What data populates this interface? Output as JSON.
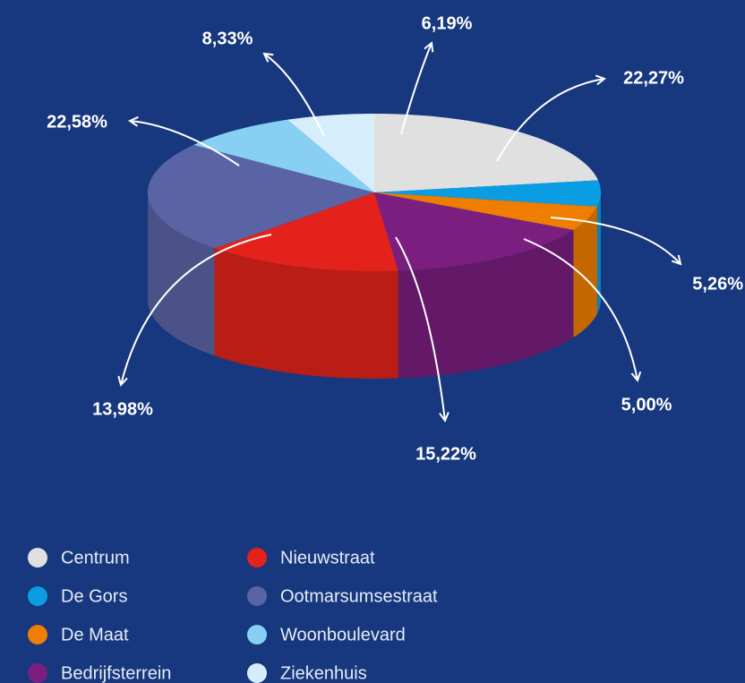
{
  "chart_data": {
    "type": "pie3d",
    "categories": [
      "Centrum",
      "De Gors",
      "De Maat",
      "Bedrijfsterrein",
      "Nieuwstraat",
      "Ootmarsumsestraat",
      "Woonboulevard",
      "Ziekenhuis"
    ],
    "values": [
      22.27,
      5.26,
      5.0,
      15.22,
      13.98,
      22.58,
      8.33,
      6.19
    ],
    "value_labels": [
      "22,27%",
      "5,26%",
      "5,00%",
      "15,22%",
      "13,98%",
      "22,58%",
      "8,33%",
      "6,19%"
    ],
    "colors": [
      "#e0e0e0",
      "#0a9de3",
      "#ef7d00",
      "#7a1f7f",
      "#e3221b",
      "#5a64a5",
      "#87d0f4",
      "#d6eefb"
    ],
    "legend": "bottom-left"
  }
}
